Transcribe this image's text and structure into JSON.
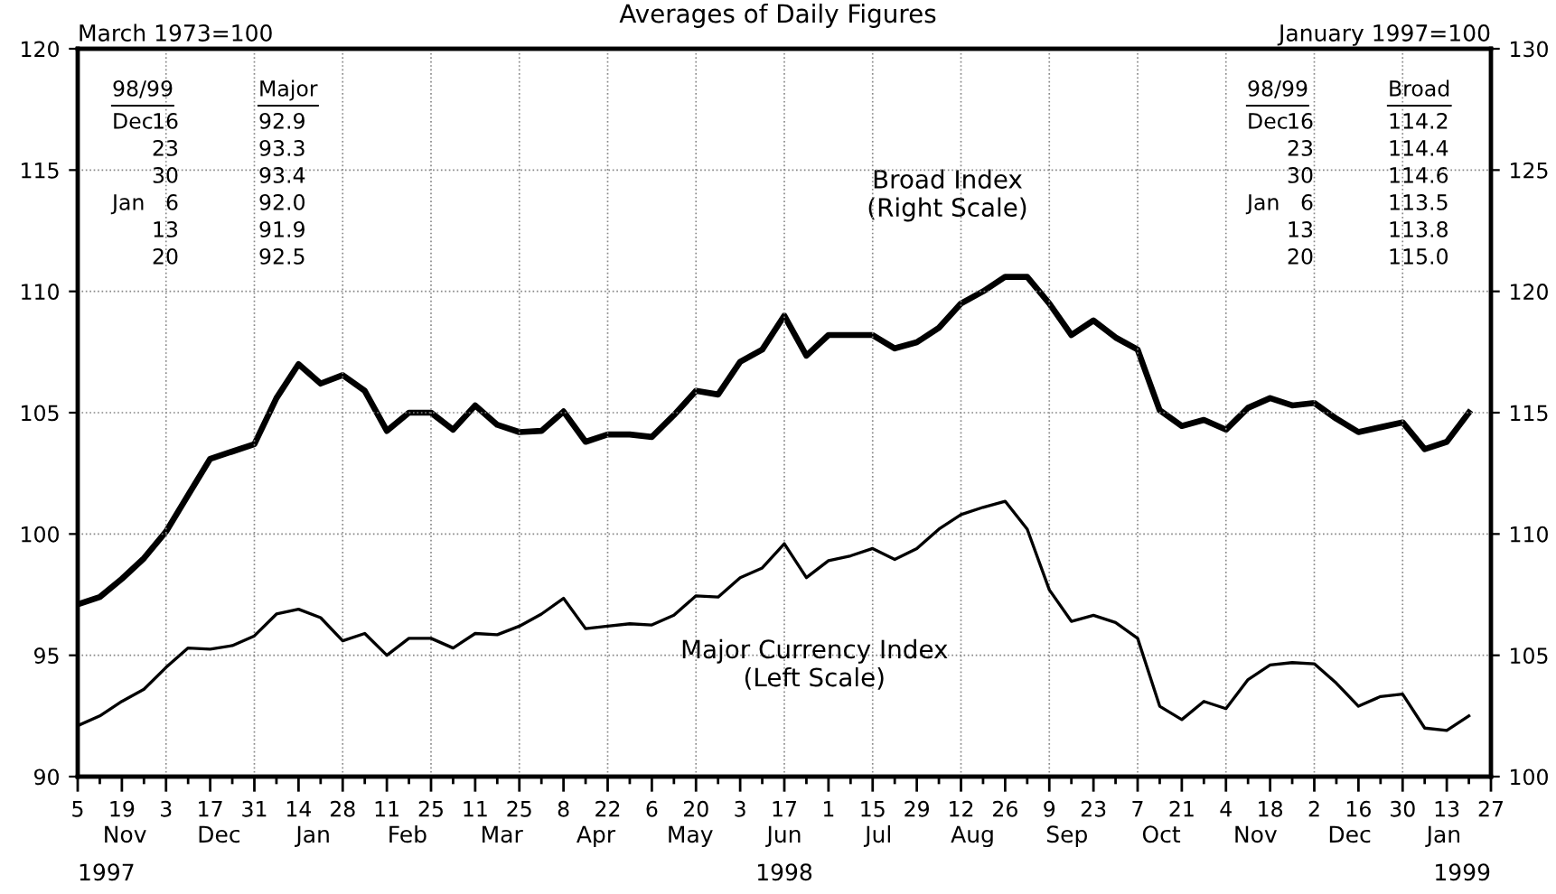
{
  "chart_data": {
    "type": "line",
    "title": "Averages of Daily Figures",
    "ylabel": "March 1973=100",
    "y2label": "January 1997=100",
    "x": [
      "1997-11-05",
      "1997-11-12",
      "1997-11-19",
      "1997-11-26",
      "1997-12-03",
      "1997-12-10",
      "1997-12-17",
      "1997-12-24",
      "1997-12-31",
      "1998-01-07",
      "1998-01-14",
      "1998-01-21",
      "1998-01-28",
      "1998-02-04",
      "1998-02-11",
      "1998-02-18",
      "1998-02-25",
      "1998-03-04",
      "1998-03-11",
      "1998-03-18",
      "1998-03-25",
      "1998-04-01",
      "1998-04-08",
      "1998-04-15",
      "1998-04-22",
      "1998-04-29",
      "1998-05-06",
      "1998-05-13",
      "1998-05-20",
      "1998-05-27",
      "1998-06-03",
      "1998-06-10",
      "1998-06-17",
      "1998-06-24",
      "1998-07-01",
      "1998-07-08",
      "1998-07-15",
      "1998-07-22",
      "1998-07-29",
      "1998-08-05",
      "1998-08-12",
      "1998-08-19",
      "1998-08-26",
      "1998-09-02",
      "1998-09-09",
      "1998-09-16",
      "1998-09-23",
      "1998-09-30",
      "1998-10-07",
      "1998-10-14",
      "1998-10-21",
      "1998-10-28",
      "1998-11-04",
      "1998-11-11",
      "1998-11-18",
      "1998-11-25",
      "1998-12-02",
      "1998-12-09",
      "1998-12-16",
      "1998-12-23",
      "1998-12-30",
      "1999-01-06",
      "1999-01-13",
      "1999-01-20"
    ],
    "series": [
      {
        "name": "Broad Index\n(Right Scale)",
        "color": "#000000",
        "axis": "y2",
        "values": [
          107.1,
          107.4,
          108.15,
          109.0,
          110.1,
          111.6,
          113.1,
          113.4,
          113.7,
          115.6,
          117.0,
          116.2,
          116.55,
          115.9,
          114.25,
          115.0,
          115.0,
          114.3,
          115.3,
          114.5,
          114.2,
          114.25,
          115.05,
          113.8,
          114.1,
          114.1,
          114.0,
          114.9,
          115.9,
          115.75,
          117.1,
          117.6,
          119.0,
          117.35,
          118.2,
          118.2,
          118.2,
          117.65,
          117.9,
          118.5,
          119.5,
          120.0,
          120.6,
          120.6,
          119.5,
          118.2,
          118.8,
          118.1,
          117.6,
          115.1,
          114.45,
          114.7,
          114.3,
          115.2,
          115.6,
          115.3,
          115.4,
          114.75,
          114.2,
          114.4,
          114.6,
          113.5,
          113.8,
          115.0
        ]
      },
      {
        "name": "Major Currency Index\n(Left Scale)",
        "color": "#000000",
        "values": [
          92.1,
          92.5,
          93.1,
          93.6,
          94.5,
          95.3,
          95.25,
          95.4,
          95.8,
          96.7,
          96.9,
          96.55,
          95.6,
          95.9,
          95.0,
          95.7,
          95.7,
          95.3,
          95.9,
          95.85,
          96.2,
          96.7,
          97.35,
          96.1,
          96.2,
          96.3,
          96.25,
          96.65,
          97.45,
          97.4,
          98.2,
          98.6,
          99.6,
          98.2,
          98.9,
          99.1,
          99.4,
          98.95,
          99.4,
          100.2,
          100.8,
          101.1,
          101.35,
          100.2,
          97.7,
          96.4,
          96.65,
          96.35,
          95.7,
          92.9,
          92.35,
          93.1,
          92.8,
          94.0,
          94.6,
          94.7,
          94.65,
          93.85,
          92.9,
          93.3,
          93.4,
          92.0,
          91.9,
          92.5
        ]
      }
    ],
    "xlim": [
      "1997-11-05",
      "1999-01-27"
    ],
    "xticks": [
      {
        "value": "1997-11-05",
        "label": "5"
      },
      {
        "value": "1997-11-12",
        "label": null
      },
      {
        "value": "1997-11-19",
        "label": "19"
      },
      {
        "value": "1997-11-26",
        "label": null
      },
      {
        "value": "1997-12-03",
        "label": "3"
      },
      {
        "value": "1997-12-10",
        "label": null
      },
      {
        "value": "1997-12-17",
        "label": "17"
      },
      {
        "value": "1997-12-24",
        "label": null
      },
      {
        "value": "1997-12-31",
        "label": "31"
      },
      {
        "value": "1998-01-07",
        "label": null
      },
      {
        "value": "1998-01-14",
        "label": "14"
      },
      {
        "value": "1998-01-21",
        "label": null
      },
      {
        "value": "1998-01-28",
        "label": "28"
      },
      {
        "value": "1998-02-04",
        "label": null
      },
      {
        "value": "1998-02-11",
        "label": "11"
      },
      {
        "value": "1998-02-18",
        "label": null
      },
      {
        "value": "1998-02-25",
        "label": "25"
      },
      {
        "value": "1998-03-04",
        "label": null
      },
      {
        "value": "1998-03-11",
        "label": "11"
      },
      {
        "value": "1998-03-18",
        "label": null
      },
      {
        "value": "1998-03-25",
        "label": "25"
      },
      {
        "value": "1998-04-01",
        "label": null
      },
      {
        "value": "1998-04-08",
        "label": "8"
      },
      {
        "value": "1998-04-15",
        "label": null
      },
      {
        "value": "1998-04-22",
        "label": "22"
      },
      {
        "value": "1998-04-29",
        "label": null
      },
      {
        "value": "1998-05-06",
        "label": "6"
      },
      {
        "value": "1998-05-13",
        "label": null
      },
      {
        "value": "1998-05-20",
        "label": "20"
      },
      {
        "value": "1998-05-27",
        "label": null
      },
      {
        "value": "1998-06-03",
        "label": "3"
      },
      {
        "value": "1998-06-10",
        "label": null
      },
      {
        "value": "1998-06-17",
        "label": "17"
      },
      {
        "value": "1998-06-24",
        "label": null
      },
      {
        "value": "1998-07-01",
        "label": "1"
      },
      {
        "value": "1998-07-08",
        "label": null
      },
      {
        "value": "1998-07-15",
        "label": "15"
      },
      {
        "value": "1998-07-22",
        "label": null
      },
      {
        "value": "1998-07-29",
        "label": "29"
      },
      {
        "value": "1998-08-05",
        "label": null
      },
      {
        "value": "1998-08-12",
        "label": "12"
      },
      {
        "value": "1998-08-19",
        "label": null
      },
      {
        "value": "1998-08-26",
        "label": "26"
      },
      {
        "value": "1998-09-02",
        "label": null
      },
      {
        "value": "1998-09-09",
        "label": "9"
      },
      {
        "value": "1998-09-16",
        "label": null
      },
      {
        "value": "1998-09-23",
        "label": "23"
      },
      {
        "value": "1998-09-30",
        "label": null
      },
      {
        "value": "1998-10-07",
        "label": "7"
      },
      {
        "value": "1998-10-14",
        "label": null
      },
      {
        "value": "1998-10-21",
        "label": "21"
      },
      {
        "value": "1998-10-28",
        "label": null
      },
      {
        "value": "1998-11-04",
        "label": "4"
      },
      {
        "value": "1998-11-11",
        "label": null
      },
      {
        "value": "1998-11-18",
        "label": "18"
      },
      {
        "value": "1998-11-25",
        "label": null
      },
      {
        "value": "1998-12-02",
        "label": "2"
      },
      {
        "value": "1998-12-09",
        "label": null
      },
      {
        "value": "1998-12-16",
        "label": "16"
      },
      {
        "value": "1998-12-23",
        "label": null
      },
      {
        "value": "1998-12-30",
        "label": "30"
      },
      {
        "value": "1999-01-06",
        "label": null
      },
      {
        "value": "1999-01-13",
        "label": "13"
      },
      {
        "value": "1999-01-20",
        "label": null
      },
      {
        "value": "1999-01-27",
        "label": "27"
      }
    ],
    "ylim": [
      90,
      120
    ],
    "yticks": [
      90,
      95,
      100,
      105,
      110,
      115,
      120
    ],
    "y2lim": [
      100,
      130
    ],
    "y2ticks": [
      100,
      105,
      110,
      115,
      120,
      125,
      130
    ],
    "grid": true,
    "legend": false,
    "marker": "none",
    "line_style": "solid",
    "annotations": [
      "98/99\t\tMajor\nDec\t16\t92.9\n\t23\t93.3\n\t30\t93.4\nJan\t6\t92.0\n\t13\t91.9\n\t20\t92.5",
      "98/99\t\tBroad\nDec\t16\t114.2\n\t23\t114.4\n\t30\t114.6\nJan\t6\t113.5\n\t13\t113.8\n\t20\t115.0",
      "Nov\tDec\tJan\tFeb\tMar\tApr\tMay\tJun\tJul\tAug\tSep\tOct\tNov\tDec\tJan",
      "1997\t1998\t1999"
    ]
  }
}
